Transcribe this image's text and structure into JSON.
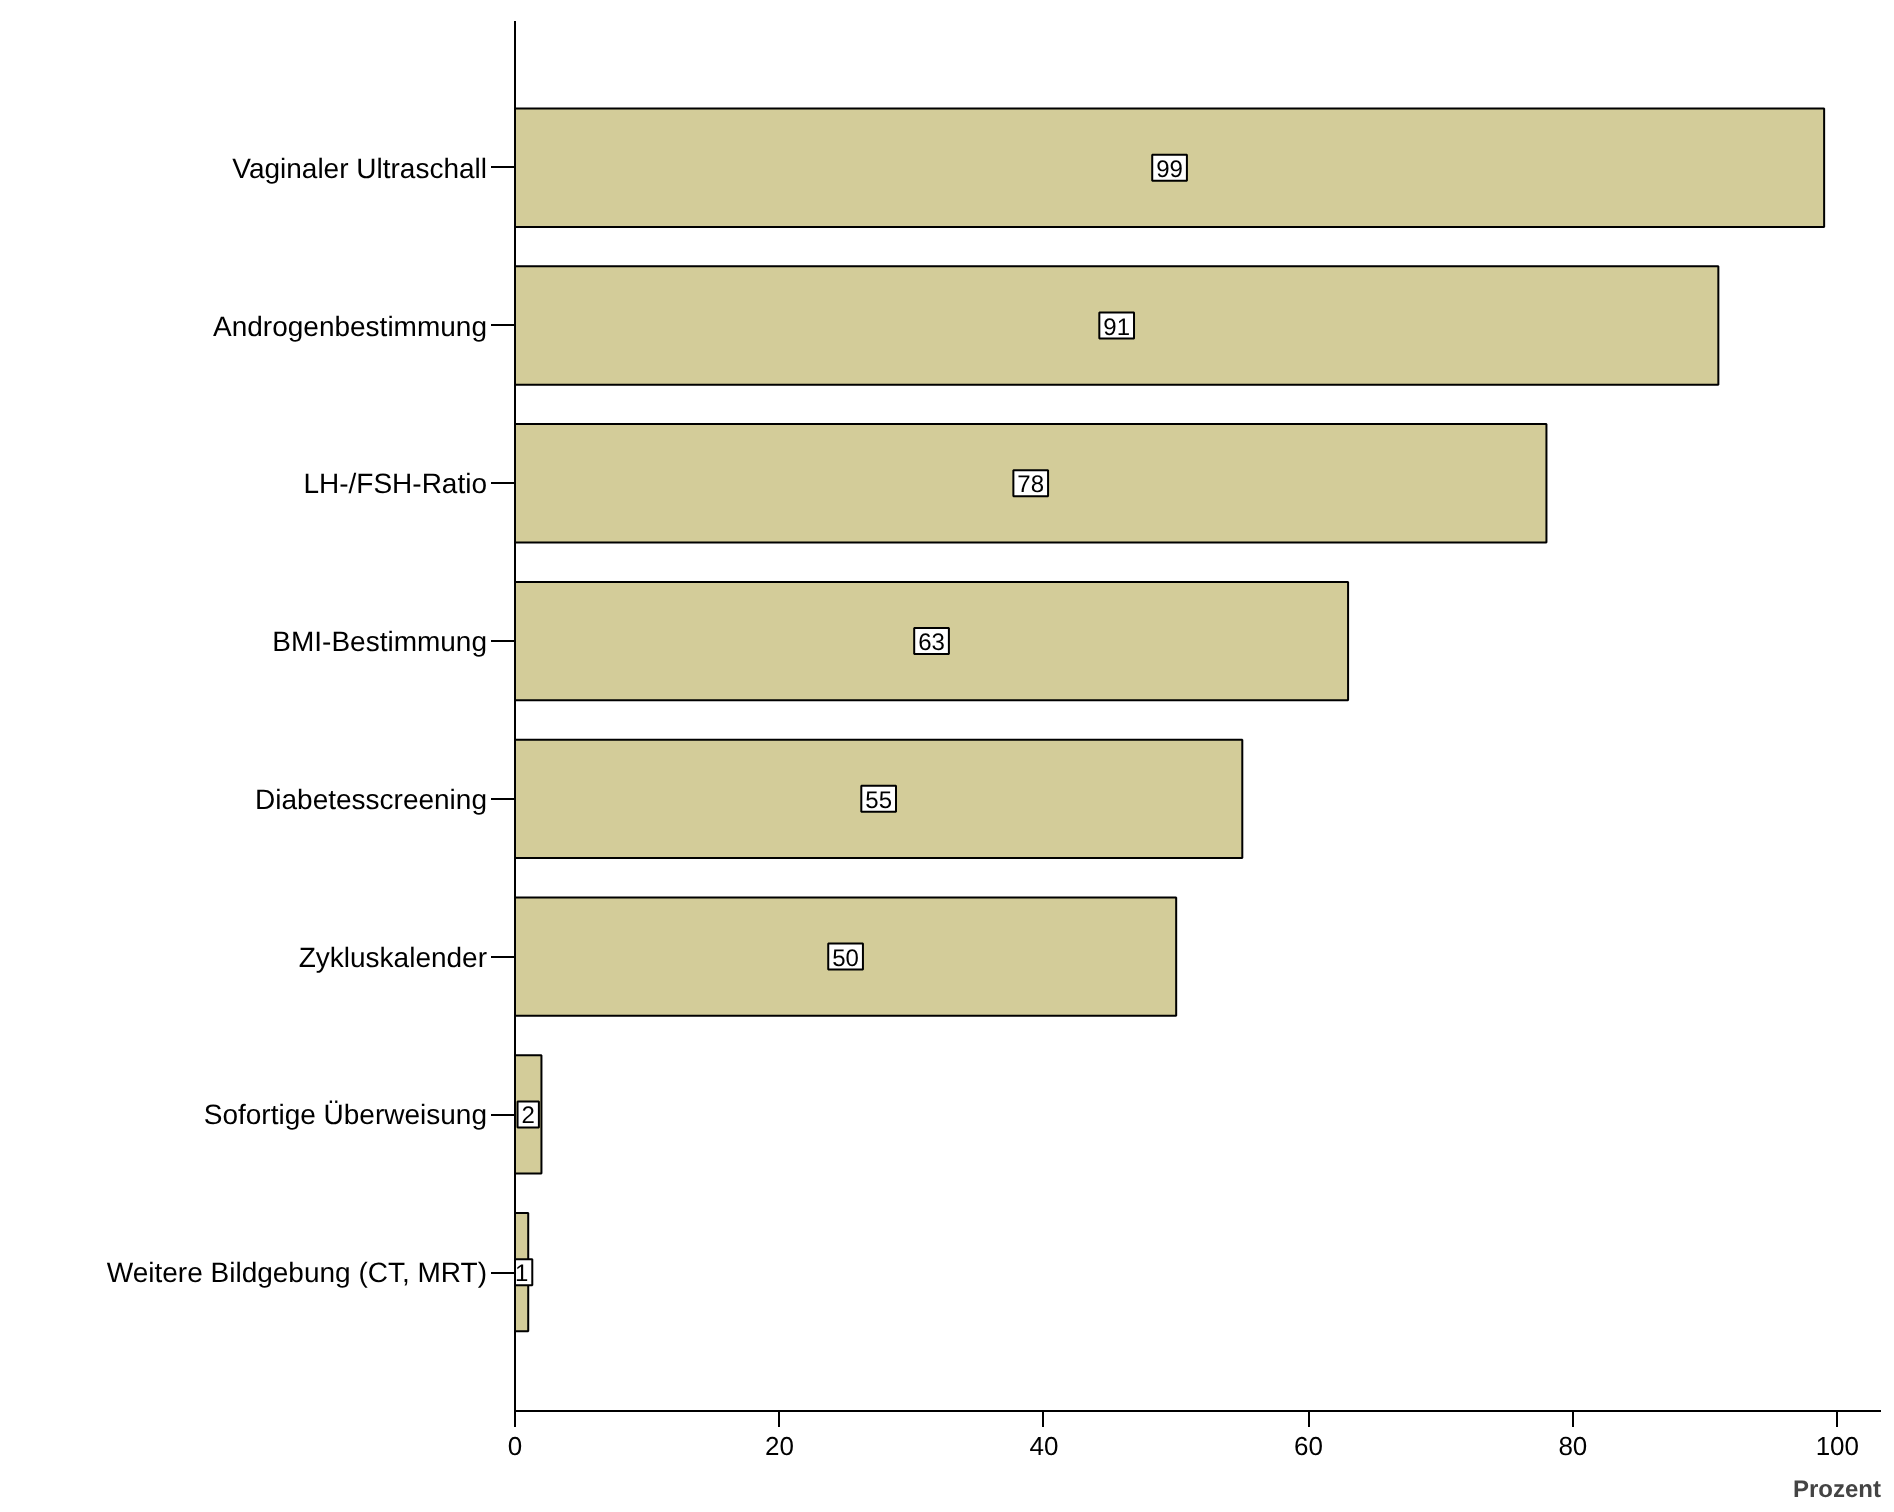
{
  "chart_data": {
    "type": "bar",
    "orientation": "horizontal",
    "xlabel": "Prozent",
    "categories": [
      "Vaginaler Ultraschall",
      "Androgenbestimmung",
      "LH-/FSH-Ratio",
      "BMI-Bestimmung",
      "Diabetesscreening",
      "Zykluskalender",
      "Sofortige Überweisung",
      "Weitere Bildgebung (CT, MRT)"
    ],
    "values": [
      99,
      91,
      78,
      63,
      55,
      50,
      2,
      1
    ],
    "color": "#d3cc99",
    "data_labels": true,
    "xlim": [
      0,
      103.3
    ],
    "xticks": [
      0,
      20,
      40,
      60,
      80,
      100
    ],
    "grid": false
  }
}
